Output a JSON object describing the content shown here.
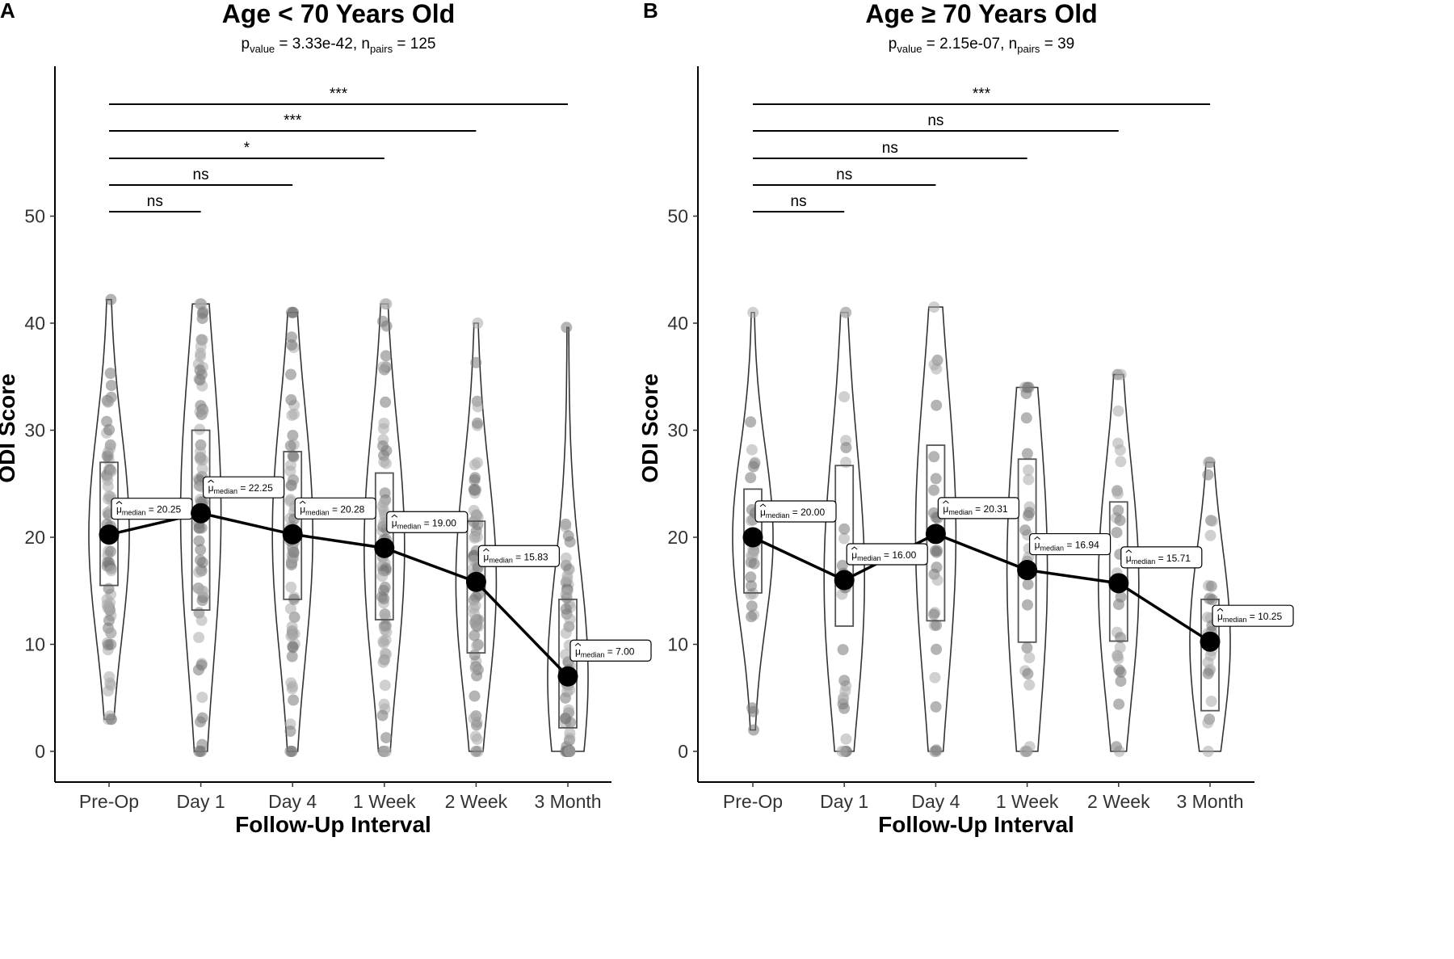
{
  "chart_data": [
    {
      "panel": "A",
      "type": "violin",
      "title": "Age < 70 Years Old",
      "subtitle": {
        "p_var": "p",
        "p_sub": "value",
        "p_val": " = 3.33e-42, ",
        "n_var": "n",
        "n_sub": "pairs",
        "n_val": " = 125"
      },
      "xlabel": "Follow-Up Interval",
      "ylabel": "ODI Score",
      "categories": [
        "Pre-Op",
        "Day 1",
        "Day 4",
        "1 Week",
        "2 Week",
        "3 Month"
      ],
      "yticks": [
        "0",
        "10",
        "20",
        "30",
        "40",
        "50"
      ],
      "medians": [
        20.25,
        22.25,
        20.28,
        19.0,
        15.83,
        7.0
      ],
      "median_labels": [
        "= 20.25",
        "= 22.25",
        "= 20.28",
        "= 19.00",
        "= 15.83",
        "= 7.00"
      ],
      "median_prefix": "μ",
      "median_sub": "median",
      "box_q1": [
        15.5,
        13.2,
        14.2,
        12.3,
        9.2,
        2.2
      ],
      "box_q3": [
        27.0,
        30.0,
        28.0,
        26.0,
        21.5,
        14.2
      ],
      "data_min": [
        3.0,
        0.0,
        0.0,
        0.0,
        0.0,
        0.0
      ],
      "data_max": [
        42.2,
        41.8,
        41.0,
        41.8,
        40.0,
        39.6
      ],
      "comparisons": [
        {
          "from": "Pre-Op",
          "to": "Day 1",
          "label": "ns"
        },
        {
          "from": "Pre-Op",
          "to": "Day 4",
          "label": "ns"
        },
        {
          "from": "Pre-Op",
          "to": "1 Week",
          "label": "*"
        },
        {
          "from": "Pre-Op",
          "to": "2 Week",
          "label": "***"
        },
        {
          "from": "Pre-Op",
          "to": "3 Month",
          "label": "***"
        }
      ]
    },
    {
      "panel": "B",
      "type": "violin",
      "title": "Age ≥ 70 Years Old",
      "subtitle": {
        "p_var": "p",
        "p_sub": "value",
        "p_val": " = 2.15e-07, ",
        "n_var": "n",
        "n_sub": "pairs",
        "n_val": " = 39"
      },
      "xlabel": "Follow-Up Interval",
      "ylabel": "ODI Score",
      "categories": [
        "Pre-Op",
        "Day 1",
        "Day 4",
        "1 Week",
        "2 Week",
        "3 Month"
      ],
      "yticks": [
        "0",
        "10",
        "20",
        "30",
        "40",
        "50"
      ],
      "medians": [
        20.0,
        16.0,
        20.31,
        16.94,
        15.71,
        10.25
      ],
      "median_labels": [
        "= 20.00",
        "= 16.00",
        "= 20.31",
        "= 16.94",
        "= 15.71",
        "= 10.25"
      ],
      "median_prefix": "μ",
      "median_sub": "median",
      "box_q1": [
        14.8,
        11.7,
        12.2,
        10.2,
        10.3,
        3.8
      ],
      "box_q3": [
        24.5,
        26.7,
        28.6,
        27.3,
        23.3,
        14.2
      ],
      "data_min": [
        2.0,
        0.0,
        0.0,
        0.0,
        0.0,
        0.0
      ],
      "data_max": [
        41.0,
        41.0,
        41.5,
        34.0,
        35.2,
        27.0
      ],
      "comparisons": [
        {
          "from": "Pre-Op",
          "to": "Day 1",
          "label": "ns"
        },
        {
          "from": "Pre-Op",
          "to": "Day 4",
          "label": "ns"
        },
        {
          "from": "Pre-Op",
          "to": "1 Week",
          "label": "ns"
        },
        {
          "from": "Pre-Op",
          "to": "2 Week",
          "label": "ns"
        },
        {
          "from": "Pre-Op",
          "to": "3 Month",
          "label": "***"
        }
      ]
    }
  ]
}
